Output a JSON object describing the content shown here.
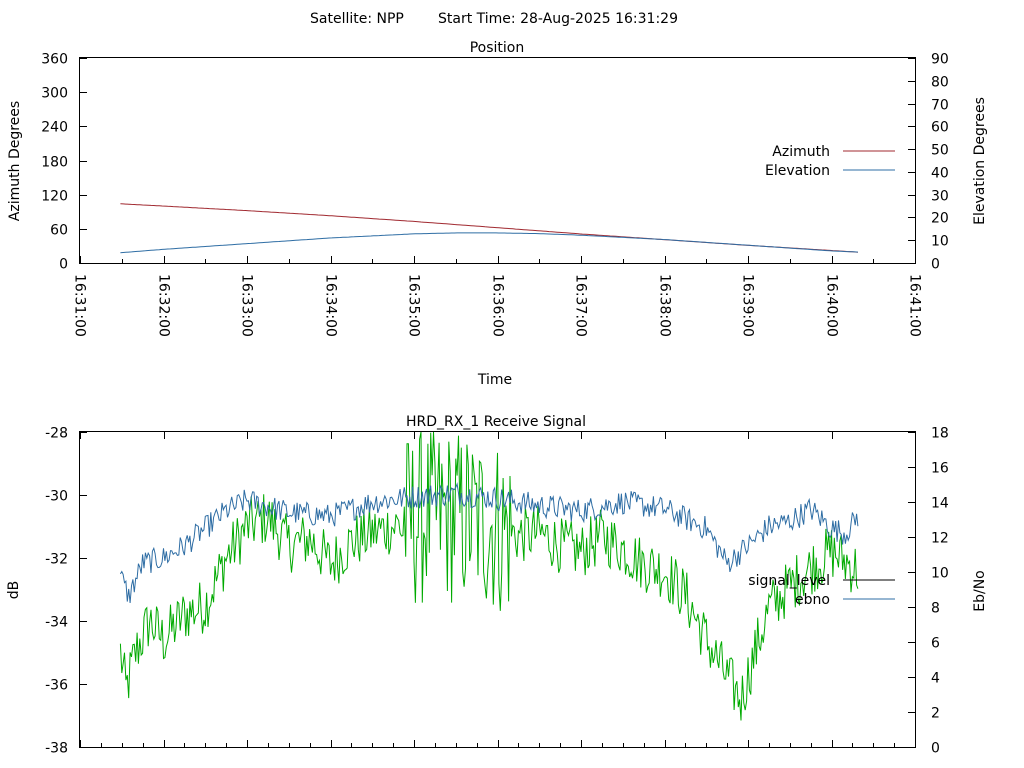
{
  "header": {
    "satellite_label": "Satellite: NPP",
    "start_time_label": "Start Time: 28-Aug-2025 16:31:29"
  },
  "chart_data": [
    {
      "type": "line",
      "title": "Position",
      "xlabel": "Time",
      "ylabel": "Azimuth Degrees",
      "y2label": "Elevation Degrees",
      "xlim": [
        "16:31:00",
        "16:41:00"
      ],
      "ylim": [
        0,
        360
      ],
      "y2lim": [
        0,
        90
      ],
      "x_ticks": [
        "16:31:00",
        "16:32:00",
        "16:33:00",
        "16:34:00",
        "16:35:00",
        "16:36:00",
        "16:37:00",
        "16:38:00",
        "16:39:00",
        "16:40:00",
        "16:41:00"
      ],
      "y_ticks": [
        "0",
        "60",
        "120",
        "180",
        "240",
        "300",
        "360"
      ],
      "y2_ticks": [
        "0",
        "10",
        "20",
        "30",
        "40",
        "50",
        "60",
        "70",
        "80",
        "90"
      ],
      "grid": false,
      "legend_position": "right",
      "series": [
        {
          "name": "Azimuth",
          "axis": "y",
          "color": "#a0282f",
          "x": [
            "16:31:29",
            "16:32:00",
            "16:33:00",
            "16:34:00",
            "16:35:00",
            "16:36:00",
            "16:37:00",
            "16:38:00",
            "16:39:00",
            "16:40:00",
            "16:40:19"
          ],
          "values": [
            104,
            100,
            92,
            83,
            73,
            62,
            51,
            41,
            31,
            22,
            19
          ]
        },
        {
          "name": "Elevation",
          "axis": "y2",
          "color": "#2e6da4",
          "x": [
            "16:31:29",
            "16:32:00",
            "16:33:00",
            "16:34:00",
            "16:35:00",
            "16:35:30",
            "16:36:00",
            "16:36:30",
            "16:37:00",
            "16:38:00",
            "16:39:00",
            "16:40:00",
            "16:40:19"
          ],
          "values": [
            4.5,
            6.0,
            8.5,
            11.0,
            12.8,
            13.2,
            13.2,
            12.9,
            12.2,
            10.3,
            7.8,
            5.3,
            4.8
          ]
        }
      ]
    },
    {
      "type": "line",
      "title": "HRD_RX_1 Receive Signal",
      "ylabel": "dB",
      "y2label": "Eb/No",
      "xlim": [
        "16:31:00",
        "16:41:00"
      ],
      "ylim": [
        -38,
        -28
      ],
      "y2lim": [
        0,
        18
      ],
      "y_ticks": [
        "-28",
        "-30",
        "-32",
        "-34",
        "-36",
        "-38"
      ],
      "y2_ticks": [
        "0",
        "2",
        "4",
        "6",
        "8",
        "10",
        "12",
        "14",
        "16",
        "18"
      ],
      "grid": false,
      "legend_position": "right",
      "series": [
        {
          "name": "signal_level",
          "axis": "y",
          "color": "#000000",
          "x": [],
          "values": []
        },
        {
          "name": "ebno",
          "axis": "y2",
          "color": "#2e6da4",
          "x": [
            "16:31:29",
            "16:31:35",
            "16:31:45",
            "16:32:00",
            "16:32:15",
            "16:32:30",
            "16:32:45",
            "16:33:00",
            "16:33:30",
            "16:34:00",
            "16:34:30",
            "16:35:00",
            "16:35:30",
            "16:36:00",
            "16:36:30",
            "16:37:00",
            "16:37:30",
            "16:38:00",
            "16:38:30",
            "16:38:45",
            "16:39:00",
            "16:39:15",
            "16:39:30",
            "16:39:45",
            "16:40:00",
            "16:40:10",
            "16:40:19"
          ],
          "values": [
            9.8,
            8.6,
            10.5,
            10.8,
            11.5,
            12.5,
            13.5,
            14.1,
            13.4,
            13.2,
            14.0,
            14.3,
            14.5,
            14.2,
            13.8,
            13.5,
            14.0,
            13.6,
            12.5,
            10.5,
            11.5,
            12.6,
            12.9,
            13.6,
            12.5,
            12.2,
            13.2
          ]
        },
        {
          "name": "",
          "axis": "y",
          "color": "#00aa00",
          "x": [
            "16:31:29",
            "16:31:33",
            "16:31:40",
            "16:31:50",
            "16:32:00",
            "16:32:15",
            "16:32:30",
            "16:32:45",
            "16:33:00",
            "16:33:15",
            "16:33:30",
            "16:33:45",
            "16:34:00",
            "16:34:15",
            "16:34:30",
            "16:34:45",
            "16:35:00",
            "16:35:15",
            "16:35:30",
            "16:35:45",
            "16:36:00",
            "16:36:15",
            "16:36:30",
            "16:36:45",
            "16:37:00",
            "16:37:15",
            "16:37:30",
            "16:37:45",
            "16:38:00",
            "16:38:15",
            "16:38:30",
            "16:38:45",
            "16:38:55",
            "16:39:05",
            "16:39:15",
            "16:39:30",
            "16:39:45",
            "16:40:00",
            "16:40:10",
            "16:40:19"
          ],
          "values": [
            -35.0,
            -36.2,
            -35.0,
            -34.0,
            -34.6,
            -33.8,
            -33.5,
            -32.0,
            -31.0,
            -30.7,
            -31.6,
            -31.4,
            -32.2,
            -31.5,
            -31.2,
            -31.0,
            -30.8,
            -30.6,
            -30.7,
            -30.8,
            -31.0,
            -31.3,
            -31.2,
            -31.6,
            -31.8,
            -31.3,
            -31.7,
            -32.2,
            -32.4,
            -33.2,
            -34.6,
            -35.8,
            -36.5,
            -35.0,
            -33.6,
            -32.9,
            -32.3,
            -31.8,
            -32.1,
            -32.4
          ]
        }
      ]
    }
  ]
}
